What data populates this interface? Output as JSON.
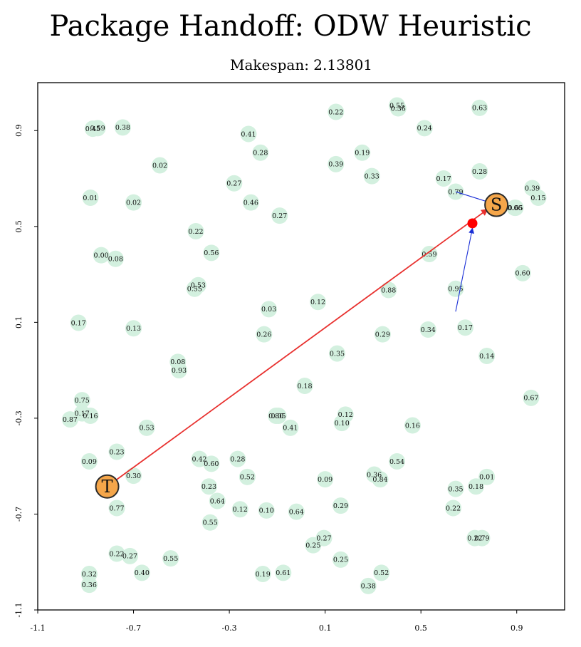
{
  "chart_data": {
    "type": "scatter",
    "title": "Package Handoff: ODW Heuristic",
    "subtitle": "Makespan: 2.13801",
    "xlim": [
      -1.1,
      1.1
    ],
    "ylim": [
      -1.1,
      1.1
    ],
    "x_ticks": [
      "-1.1",
      "-0.7",
      "-0.3",
      "0.1",
      "0.5",
      "0.9"
    ],
    "y_ticks": [
      "-1.1",
      "-0.7",
      "-0.3",
      "0.1",
      "0.5",
      "0.9"
    ],
    "colors": {
      "point": "#d3f0df",
      "route": "#e8312f",
      "drone": "#1a2fd6",
      "marker": "#f5a64a",
      "handoff": "#ff0000"
    },
    "source": {
      "label": "S",
      "x": 0.815,
      "y": 0.59
    },
    "target": {
      "label": "T",
      "x": -0.81,
      "y": -0.585
    },
    "handoff": {
      "x": 0.715,
      "y": 0.513
    },
    "drone_paths": [
      {
        "from": [
          0.645,
          0.145
        ],
        "to": [
          0.715,
          0.513
        ]
      },
      {
        "from": [
          0.645,
          0.645
        ],
        "to": [
          0.815,
          0.59
        ]
      }
    ],
    "points": [
      {
        "x": -0.87,
        "y": 0.908,
        "v": "0.45"
      },
      {
        "x": -0.85,
        "y": 0.91,
        "v": "0.59"
      },
      {
        "x": -0.745,
        "y": 0.913,
        "v": "0.38"
      },
      {
        "x": -0.59,
        "y": 0.755,
        "v": "0.02"
      },
      {
        "x": -0.88,
        "y": 0.62,
        "v": "0.01"
      },
      {
        "x": -0.7,
        "y": 0.6,
        "v": "0.02"
      },
      {
        "x": -0.22,
        "y": 0.886,
        "v": "0.41"
      },
      {
        "x": -0.17,
        "y": 0.808,
        "v": "0.28"
      },
      {
        "x": -0.28,
        "y": 0.68,
        "v": "0.27"
      },
      {
        "x": -0.21,
        "y": 0.6,
        "v": "0.46"
      },
      {
        "x": -0.09,
        "y": 0.545,
        "v": "0.27"
      },
      {
        "x": 0.145,
        "y": 0.978,
        "v": "0.22"
      },
      {
        "x": 0.145,
        "y": 0.76,
        "v": "0.39"
      },
      {
        "x": 0.255,
        "y": 0.808,
        "v": "0.19"
      },
      {
        "x": 0.295,
        "y": 0.71,
        "v": "0.33"
      },
      {
        "x": 0.4,
        "y": 1.005,
        "v": "0.55"
      },
      {
        "x": 0.405,
        "y": 0.993,
        "v": "0.36"
      },
      {
        "x": 0.515,
        "y": 0.91,
        "v": "0.24"
      },
      {
        "x": 0.745,
        "y": 0.995,
        "v": "0.63"
      },
      {
        "x": 0.595,
        "y": 0.7,
        "v": "0.17"
      },
      {
        "x": 0.745,
        "y": 0.73,
        "v": "0.28"
      },
      {
        "x": 0.645,
        "y": 0.645,
        "v": "0.79"
      },
      {
        "x": 0.965,
        "y": 0.66,
        "v": "0.39"
      },
      {
        "x": 0.99,
        "y": 0.62,
        "v": "0.15"
      },
      {
        "x": 0.892,
        "y": 0.578,
        "v": "0.06"
      },
      {
        "x": 0.895,
        "y": 0.578,
        "v": "0.65"
      },
      {
        "x": -0.44,
        "y": 0.48,
        "v": "0.22"
      },
      {
        "x": -0.375,
        "y": 0.39,
        "v": "0.56"
      },
      {
        "x": -0.835,
        "y": 0.38,
        "v": "0.00"
      },
      {
        "x": -0.775,
        "y": 0.365,
        "v": "0.08"
      },
      {
        "x": -0.43,
        "y": 0.255,
        "v": "0.53"
      },
      {
        "x": -0.445,
        "y": 0.24,
        "v": "0.55"
      },
      {
        "x": 0.535,
        "y": 0.385,
        "v": "0.59"
      },
      {
        "x": 0.925,
        "y": 0.305,
        "v": "0.60"
      },
      {
        "x": 0.365,
        "y": 0.235,
        "v": "0.88"
      },
      {
        "x": 0.645,
        "y": 0.24,
        "v": "0.95"
      },
      {
        "x": 0.07,
        "y": 0.185,
        "v": "0.12"
      },
      {
        "x": -0.135,
        "y": 0.155,
        "v": "0.03"
      },
      {
        "x": -0.93,
        "y": 0.098,
        "v": "0.17"
      },
      {
        "x": -0.7,
        "y": 0.075,
        "v": "0.13"
      },
      {
        "x": -0.155,
        "y": 0.05,
        "v": "0.26"
      },
      {
        "x": 0.34,
        "y": 0.05,
        "v": "0.29"
      },
      {
        "x": 0.53,
        "y": 0.07,
        "v": "0.34"
      },
      {
        "x": 0.685,
        "y": 0.078,
        "v": "0.17"
      },
      {
        "x": 0.15,
        "y": -0.03,
        "v": "0.35"
      },
      {
        "x": 0.775,
        "y": -0.04,
        "v": "0.14"
      },
      {
        "x": -0.515,
        "y": -0.065,
        "v": "0.08"
      },
      {
        "x": -0.51,
        "y": -0.1,
        "v": "0.93"
      },
      {
        "x": 0.015,
        "y": -0.165,
        "v": "0.18"
      },
      {
        "x": -0.915,
        "y": -0.225,
        "v": "0.75"
      },
      {
        "x": -0.915,
        "y": -0.28,
        "v": "0.17"
      },
      {
        "x": -0.965,
        "y": -0.305,
        "v": "0.87"
      },
      {
        "x": -0.88,
        "y": -0.29,
        "v": "0.16"
      },
      {
        "x": 0.96,
        "y": -0.215,
        "v": "0.67"
      },
      {
        "x": -0.105,
        "y": -0.29,
        "v": "0.80"
      },
      {
        "x": -0.095,
        "y": -0.29,
        "v": "0.05"
      },
      {
        "x": 0.185,
        "y": -0.285,
        "v": "0.12"
      },
      {
        "x": 0.17,
        "y": -0.32,
        "v": "0.10"
      },
      {
        "x": -0.045,
        "y": -0.34,
        "v": "0.41"
      },
      {
        "x": -0.645,
        "y": -0.34,
        "v": "0.53"
      },
      {
        "x": 0.465,
        "y": -0.33,
        "v": "0.16"
      },
      {
        "x": -0.77,
        "y": -0.44,
        "v": "0.23"
      },
      {
        "x": -0.885,
        "y": -0.48,
        "v": "0.09"
      },
      {
        "x": -0.425,
        "y": -0.47,
        "v": "0.42"
      },
      {
        "x": -0.375,
        "y": -0.49,
        "v": "0.60"
      },
      {
        "x": -0.265,
        "y": -0.47,
        "v": "0.28"
      },
      {
        "x": -0.225,
        "y": -0.545,
        "v": "0.52"
      },
      {
        "x": 0.4,
        "y": -0.48,
        "v": "0.54"
      },
      {
        "x": -0.7,
        "y": -0.54,
        "v": "0.30"
      },
      {
        "x": 0.1,
        "y": -0.555,
        "v": "0.09"
      },
      {
        "x": 0.305,
        "y": -0.535,
        "v": "0.36"
      },
      {
        "x": 0.33,
        "y": -0.555,
        "v": "0.84"
      },
      {
        "x": 0.775,
        "y": -0.545,
        "v": "0.01"
      },
      {
        "x": 0.73,
        "y": -0.585,
        "v": "0.18"
      },
      {
        "x": 0.645,
        "y": -0.595,
        "v": "0.35"
      },
      {
        "x": -0.385,
        "y": -0.585,
        "v": "0.23"
      },
      {
        "x": -0.35,
        "y": -0.645,
        "v": "0.64"
      },
      {
        "x": -0.77,
        "y": -0.675,
        "v": "0.77"
      },
      {
        "x": 0.165,
        "y": -0.665,
        "v": "0.29"
      },
      {
        "x": 0.635,
        "y": -0.675,
        "v": "0.22"
      },
      {
        "x": -0.255,
        "y": -0.68,
        "v": "0.12"
      },
      {
        "x": -0.145,
        "y": -0.685,
        "v": "0.10"
      },
      {
        "x": -0.02,
        "y": -0.69,
        "v": "0.64"
      },
      {
        "x": -0.38,
        "y": -0.735,
        "v": "0.55"
      },
      {
        "x": 0.095,
        "y": -0.8,
        "v": "0.27"
      },
      {
        "x": 0.05,
        "y": -0.83,
        "v": "0.25"
      },
      {
        "x": 0.725,
        "y": -0.8,
        "v": "0.22"
      },
      {
        "x": 0.755,
        "y": -0.8,
        "v": "0.79"
      },
      {
        "x": -0.77,
        "y": -0.865,
        "v": "0.22"
      },
      {
        "x": -0.715,
        "y": -0.875,
        "v": "0.27"
      },
      {
        "x": -0.545,
        "y": -0.885,
        "v": "0.55"
      },
      {
        "x": 0.165,
        "y": -0.89,
        "v": "0.25"
      },
      {
        "x": -0.885,
        "y": -0.95,
        "v": "0.32"
      },
      {
        "x": -0.665,
        "y": -0.945,
        "v": "0.40"
      },
      {
        "x": -0.16,
        "y": -0.95,
        "v": "0.19"
      },
      {
        "x": -0.075,
        "y": -0.945,
        "v": "0.61"
      },
      {
        "x": 0.335,
        "y": -0.945,
        "v": "0.52"
      },
      {
        "x": -0.885,
        "y": -0.995,
        "v": "0.36"
      },
      {
        "x": 0.28,
        "y": -1.0,
        "v": "0.38"
      }
    ]
  }
}
